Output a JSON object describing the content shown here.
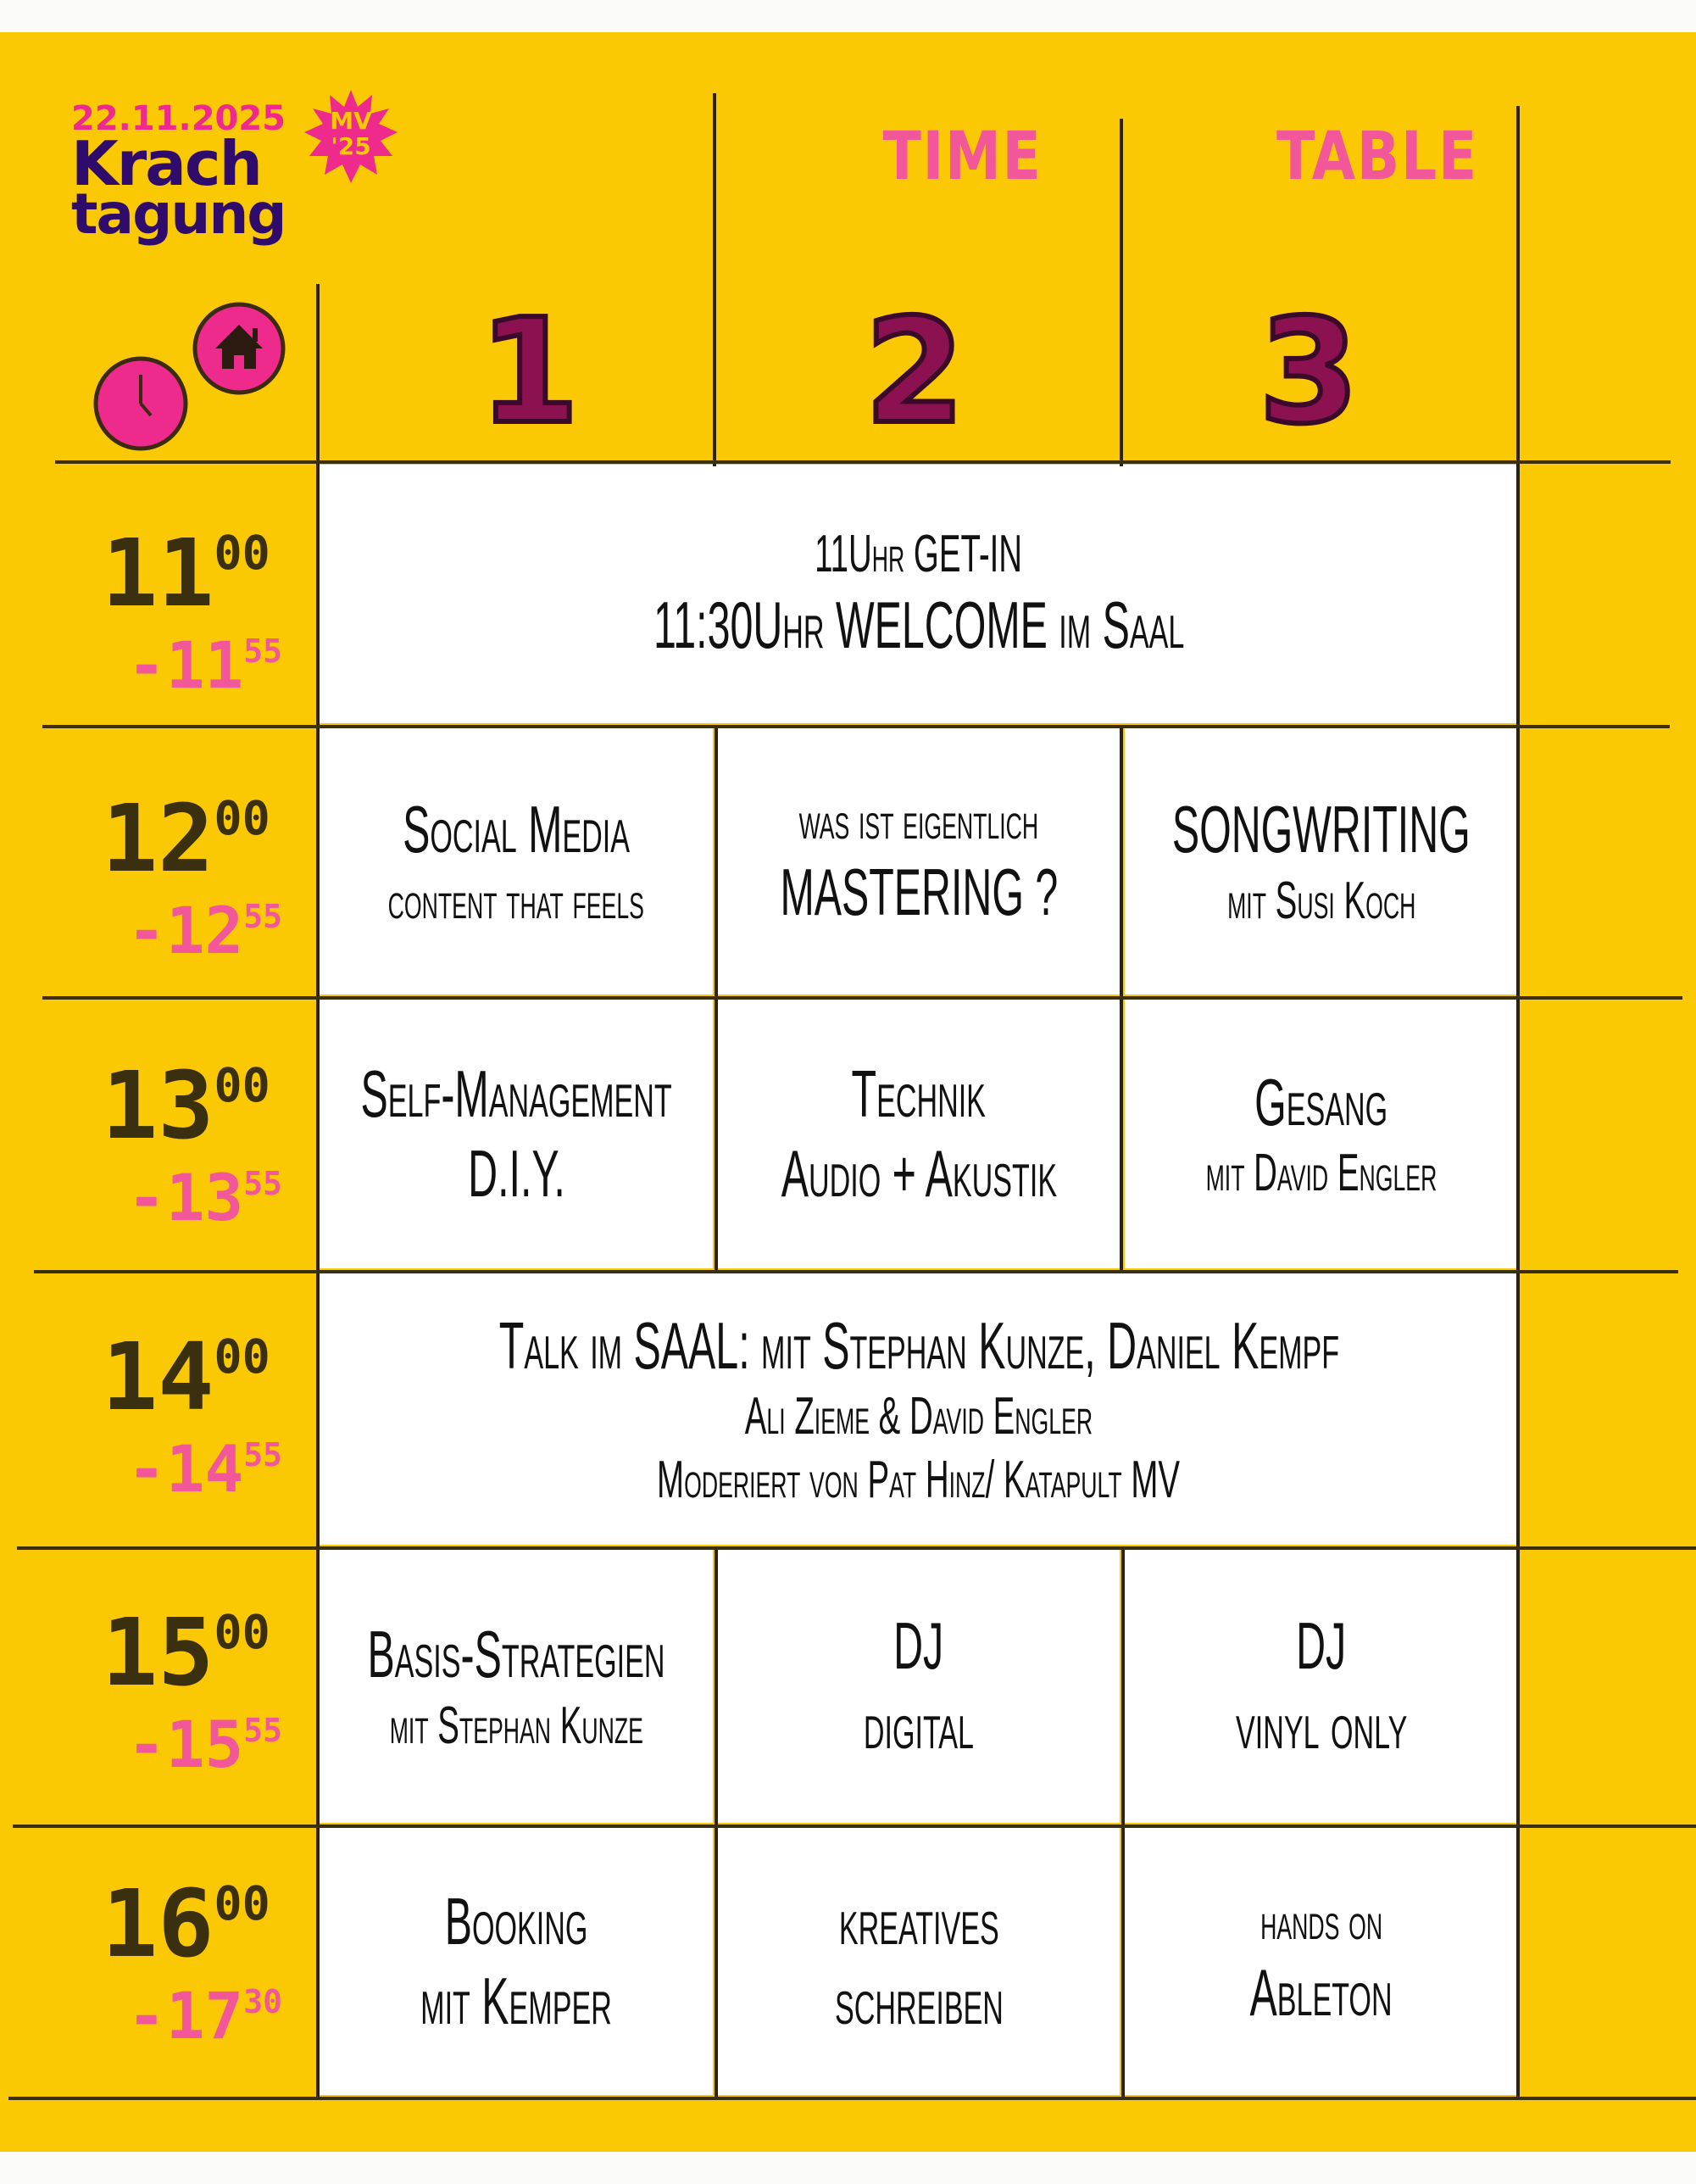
{
  "logo": {
    "date": "22.11.2025",
    "title_line1": "Krach",
    "title_line2": "tagung",
    "badge_line1": "MV",
    "badge_line2": "'25"
  },
  "header": {
    "word1": "TIME",
    "word2": "TABLE",
    "rooms": [
      "1",
      "2",
      "3"
    ]
  },
  "icons": [
    "clock-icon",
    "home-icon"
  ],
  "colors": {
    "background": "#fbc804",
    "accent_pink": "#f2579a",
    "logo_purple": "#2f0c6b",
    "number_fill": "#8c1150"
  },
  "slots": [
    {
      "start": "11",
      "start_min": "00",
      "end": "-11",
      "end_min": "55"
    },
    {
      "start": "12",
      "start_min": "00",
      "end": "-12",
      "end_min": "55"
    },
    {
      "start": "13",
      "start_min": "00",
      "end": "-13",
      "end_min": "55"
    },
    {
      "start": "14",
      "start_min": "00",
      "end": "-14",
      "end_min": "55"
    },
    {
      "start": "15",
      "start_min": "00",
      "end": "-15",
      "end_min": "55"
    },
    {
      "start": "16",
      "start_min": "00",
      "end": "-17",
      "end_min": "30"
    }
  ],
  "sessions": {
    "r11": {
      "line1": "11Uhr  GET-IN",
      "line2": "11:30Uhr  WELCOME im Saal"
    },
    "r12": [
      {
        "line1": "Social Media",
        "line2": "content that feels"
      },
      {
        "line1": "was ist eigentlich",
        "line2": "MASTERING ?"
      },
      {
        "line1": "SONGWRITING",
        "line2": "mit Susi Koch"
      }
    ],
    "r13": [
      {
        "line1": "Self-Management",
        "line2": "D.I.Y."
      },
      {
        "line1": "Technik",
        "line2": "Audio + Akustik"
      },
      {
        "line1": "Gesang",
        "line2": "mit David Engler"
      }
    ],
    "r14": {
      "line1": "Talk im SAAL: mit Stephan Kunze, Daniel Kempf",
      "line2": "Ali Zieme & David Engler",
      "line3": "Moderiert von Pat Hinz/ Katapult MV"
    },
    "r15": [
      {
        "line1": "Basis-Strategien",
        "line2": "mit Stephan Kunze"
      },
      {
        "line1": "DJ",
        "line2": "digital"
      },
      {
        "line1": "DJ",
        "line2": "vinyl only"
      }
    ],
    "r16": [
      {
        "line1": "Booking",
        "line2": "mit Kemper"
      },
      {
        "line1": "kreatives",
        "line2": "schreiben"
      },
      {
        "line1": "hands on",
        "line2": "Ableton"
      }
    ]
  }
}
